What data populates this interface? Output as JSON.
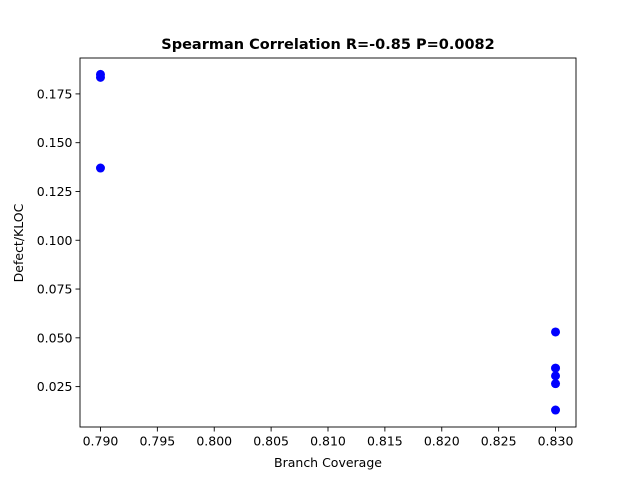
{
  "chart_data": {
    "type": "scatter",
    "title": "Spearman Correlation R=-0.85 P=0.0082",
    "xlabel": "Branch Coverage",
    "ylabel": "Defect/KLOC",
    "xlim": [
      0.7882,
      0.8318
    ],
    "ylim": [
      0.0043,
      0.1934
    ],
    "xticks": [
      0.79,
      0.795,
      0.8,
      0.805,
      0.81,
      0.815,
      0.82,
      0.825,
      0.83
    ],
    "xtick_labels": [
      "0.790",
      "0.795",
      "0.800",
      "0.805",
      "0.810",
      "0.815",
      "0.820",
      "0.825",
      "0.830"
    ],
    "yticks": [
      0.025,
      0.05,
      0.075,
      0.1,
      0.125,
      0.15,
      0.175
    ],
    "ytick_labels": [
      "0.025",
      "0.050",
      "0.075",
      "0.100",
      "0.125",
      "0.150",
      "0.175"
    ],
    "grid": false,
    "marker_color": "#0000ff",
    "points": [
      {
        "x": 0.79,
        "y": 0.185
      },
      {
        "x": 0.79,
        "y": 0.1835
      },
      {
        "x": 0.79,
        "y": 0.137
      },
      {
        "x": 0.83,
        "y": 0.053
      },
      {
        "x": 0.83,
        "y": 0.0345
      },
      {
        "x": 0.83,
        "y": 0.0305
      },
      {
        "x": 0.83,
        "y": 0.0265
      },
      {
        "x": 0.83,
        "y": 0.013
      }
    ]
  }
}
